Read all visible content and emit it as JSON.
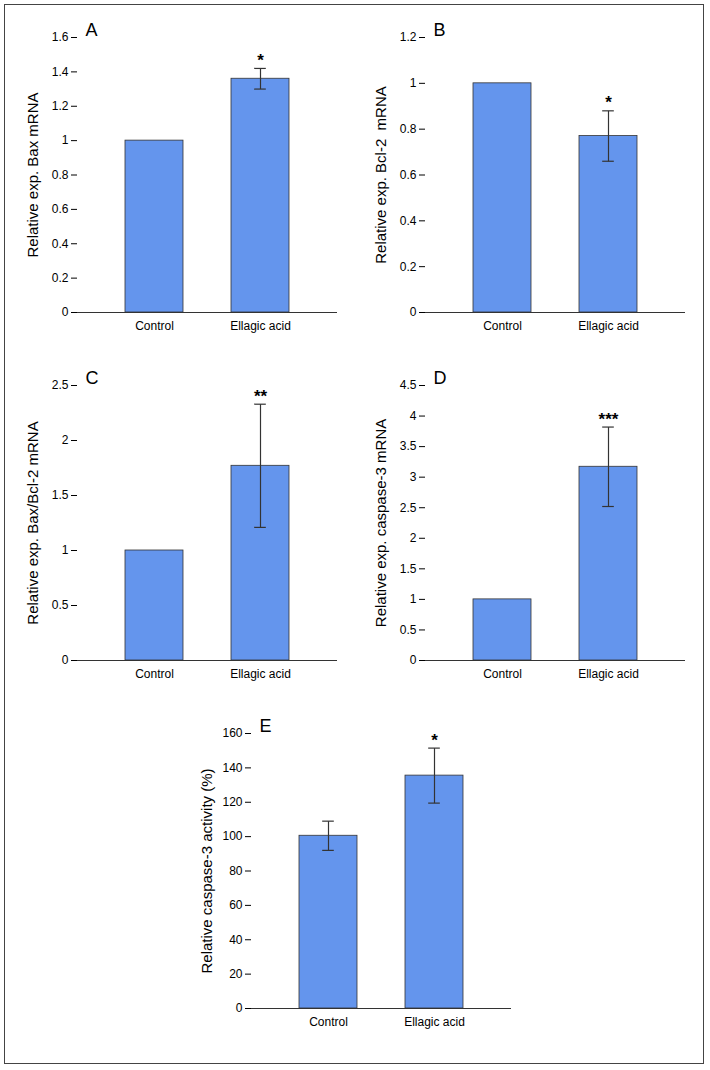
{
  "chart_data": [
    {
      "type": "bar",
      "title": "A",
      "y_label": "Relative exp. Bax mRNA",
      "categories": [
        "Control",
        "Ellagic acid"
      ],
      "values": [
        1,
        1.36
      ],
      "errors": [
        null,
        0.06
      ],
      "color": "#6495ed",
      "ylim": [
        0,
        1.6
      ],
      "yticks": [
        0,
        0.2,
        0.4,
        0.6,
        0.8,
        1,
        1.2,
        1.4,
        1.6
      ],
      "annotations": [
        {
          "x": "Ellagic acid",
          "text": "*"
        }
      ]
    },
    {
      "type": "bar",
      "title": "B",
      "y_label": "Relative exp. Bcl-2  mRNA",
      "categories": [
        "Control",
        "Ellagic acid"
      ],
      "values": [
        1,
        0.77
      ],
      "errors": [
        null,
        0.11
      ],
      "color": "#6495ed",
      "ylim": [
        0,
        1.2
      ],
      "yticks": [
        0,
        0.2,
        0.4,
        0.6,
        0.8,
        1,
        1.2
      ],
      "annotations": [
        {
          "x": "Ellagic acid",
          "text": "*"
        }
      ]
    },
    {
      "type": "bar",
      "title": "C",
      "y_label": "Relative exp. Bax/Bcl-2 mRNA",
      "categories": [
        "Control",
        "Ellagic acid"
      ],
      "values": [
        1,
        1.77
      ],
      "errors": [
        null,
        0.56
      ],
      "color": "#6495ed",
      "ylim": [
        0,
        2.5
      ],
      "yticks": [
        0,
        0.5,
        1,
        1.5,
        2,
        2.5
      ],
      "annotations": [
        {
          "x": "Ellagic acid",
          "text": "**"
        }
      ]
    },
    {
      "type": "bar",
      "title": "D",
      "y_label": "Relative exp. caspase-3 mRNA",
      "categories": [
        "Control",
        "Ellagic acid"
      ],
      "values": [
        1,
        3.17
      ],
      "errors": [
        null,
        0.65
      ],
      "color": "#6495ed",
      "ylim": [
        0,
        4.5
      ],
      "yticks": [
        0,
        0.5,
        1,
        1.5,
        2,
        2.5,
        3,
        3.5,
        4,
        4.5
      ],
      "annotations": [
        {
          "x": "Ellagic acid",
          "text": "***"
        }
      ]
    },
    {
      "type": "bar",
      "title": "E",
      "y_label": "Relative caspase-3 activity (%)",
      "categories": [
        "Control",
        "Ellagic acid"
      ],
      "values": [
        100.5,
        135.5
      ],
      "errors": [
        8.5,
        16
      ],
      "color": "#6495ed",
      "ylim": [
        0,
        160
      ],
      "yticks": [
        0,
        20,
        40,
        60,
        80,
        100,
        120,
        140,
        160
      ],
      "annotations": [
        {
          "x": "Ellagic acid",
          "text": "*"
        }
      ]
    }
  ]
}
